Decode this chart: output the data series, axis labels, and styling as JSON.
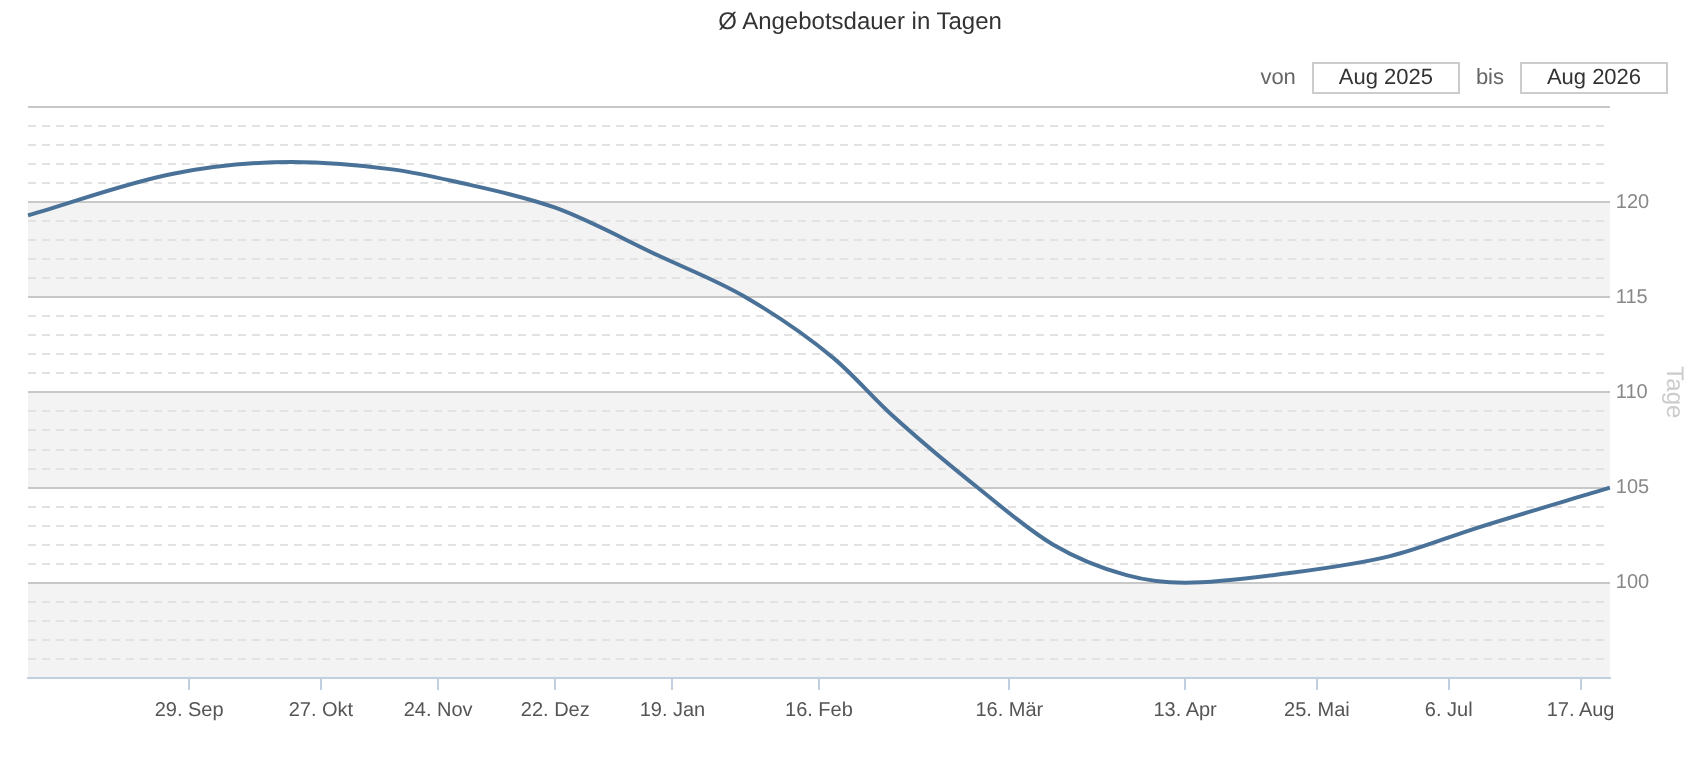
{
  "chart_data": {
    "type": "line",
    "title": "Ø Angebotsdauer in Tagen",
    "ylabel": "Tage",
    "annotations": [
      "von",
      "Aug 2025",
      "bis",
      "Aug 2026"
    ],
    "categories": [
      null,
      null,
      null,
      null,
      null,
      null,
      null,
      null,
      null,
      null,
      null,
      "29. Sep",
      null,
      null,
      null,
      null,
      null,
      null,
      null,
      null,
      "27. Okt",
      null,
      null,
      null,
      null,
      null,
      null,
      null,
      "24. Nov",
      null,
      null,
      null,
      null,
      null,
      null,
      null,
      "22. Dez",
      null,
      null,
      null,
      null,
      null,
      null,
      null,
      "19. Jan",
      null,
      null,
      null,
      null,
      null,
      null,
      null,
      null,
      null,
      "16. Feb",
      null,
      null,
      null,
      null,
      null,
      null,
      null,
      null,
      null,
      null,
      null,
      null,
      "16. Mär",
      null,
      null,
      null,
      null,
      null,
      null,
      null,
      null,
      null,
      null,
      null,
      "13. Apr",
      null,
      null,
      null,
      null,
      null,
      null,
      null,
      null,
      "25. Mai",
      null,
      null,
      null,
      null,
      null,
      null,
      null,
      null,
      "6. Jul",
      null,
      null,
      null,
      null,
      null,
      null,
      null,
      null,
      "17. Aug",
      null,
      null
    ],
    "series": [
      {
        "color": "#4a7298",
        "values": [
          119.3,
          null,
          null,
          null,
          null,
          null,
          null,
          null,
          null,
          null,
          121.5,
          null,
          null,
          null,
          null,
          null,
          null,
          null,
          122.1,
          null,
          null,
          null,
          null,
          null,
          null,
          121.7,
          null,
          null,
          null,
          121.1,
          null,
          null,
          null,
          null,
          null,
          null,
          119.7,
          null,
          null,
          null,
          null,
          null,
          null,
          117.2,
          null,
          null,
          null,
          null,
          null,
          115.0,
          null,
          null,
          null,
          null,
          null,
          111.8,
          null,
          null,
          null,
          108.8,
          null,
          null,
          null,
          null,
          null,
          104.9,
          null,
          null,
          null,
          null,
          102.0,
          null,
          null,
          null,
          null,
          100.4,
          null,
          null,
          null,
          100.0,
          null,
          null,
          null,
          null,
          null,
          null,
          100.5,
          null,
          null,
          null,
          null,
          null,
          null,
          101.4,
          null,
          null,
          null,
          null,
          null,
          102.9,
          null,
          null,
          null,
          null,
          null,
          null,
          null,
          null,
          105.0
        ]
      }
    ],
    "ylim": [
      95,
      125
    ],
    "yticks": [
      {
        "value": 95,
        "label": null
      },
      {
        "value": 96,
        "label": null
      },
      {
        "value": 97,
        "label": null
      },
      {
        "value": 98,
        "label": null
      },
      {
        "value": 99,
        "label": null
      },
      100,
      {
        "value": 101,
        "label": null
      },
      {
        "value": 102,
        "label": null
      },
      {
        "value": 103,
        "label": null
      },
      {
        "value": 104,
        "label": null
      },
      105,
      {
        "value": 106,
        "label": null
      },
      {
        "value": 107,
        "label": null
      },
      {
        "value": 108,
        "label": null
      },
      {
        "value": 109,
        "label": null
      },
      110,
      {
        "value": 111,
        "label": null
      },
      {
        "value": 112,
        "label": null
      },
      {
        "value": 113,
        "label": null
      },
      {
        "value": 114,
        "label": null
      },
      115,
      {
        "value": 116,
        "label": null
      },
      {
        "value": 117,
        "label": null
      },
      {
        "value": 118,
        "label": null
      },
      {
        "value": 119,
        "label": null
      },
      120,
      {
        "value": 121,
        "label": null
      },
      {
        "value": 122,
        "label": null
      },
      {
        "value": 123,
        "label": null
      },
      {
        "value": 124,
        "label": null
      },
      {
        "value": 125,
        "label": null
      }
    ],
    "bands": [
      {
        "axis": "y",
        "from": 95,
        "to": 100,
        "color": "#f3f3f3"
      },
      {
        "axis": "y",
        "from": 105,
        "to": 110,
        "color": "#f3f3f3"
      },
      {
        "axis": "y",
        "from": 115,
        "to": 120,
        "color": "#f3f3f3"
      }
    ],
    "grid": "y",
    "legend": false,
    "marker": "none",
    "line_style": "solid"
  }
}
